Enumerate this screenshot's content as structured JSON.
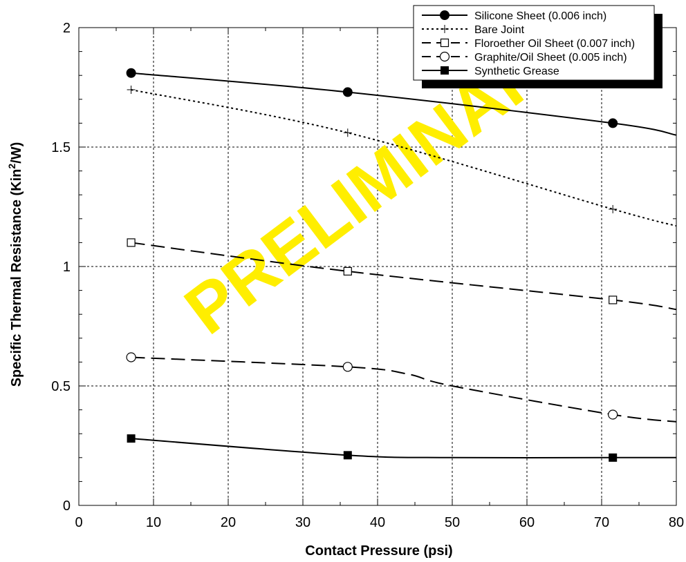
{
  "chart_data": {
    "type": "line",
    "xlabel": "Contact Pressure (psi)",
    "ylabel_main": "Specific Thermal Resistance (Kin",
    "ylabel_sup": "2",
    "ylabel_end": "/W)",
    "xlim": [
      0,
      80
    ],
    "ylim": [
      0,
      2
    ],
    "x_ticks": [
      0,
      10,
      20,
      30,
      40,
      50,
      60,
      70,
      80
    ],
    "x_tick_labels": [
      "0",
      "10",
      "20",
      "30",
      "40",
      "50",
      "60",
      "70",
      "80"
    ],
    "y_ticks": [
      0,
      0.5,
      1,
      1.5,
      2
    ],
    "y_tick_labels": [
      "0",
      "0.5",
      "1",
      "1.5",
      "2"
    ],
    "grid": true,
    "legend_position": "top-right",
    "watermark_text": "PRELIMINARY",
    "watermark_color": "#ffee00",
    "series": [
      {
        "name": "Silicone Sheet (0.006 inch)",
        "marker": "filled-circle",
        "line_style": "solid",
        "x": [
          7,
          36,
          71.5
        ],
        "y": [
          1.81,
          1.73,
          1.6
        ],
        "curve_x": [
          7,
          36,
          71.5,
          80
        ],
        "curve_y": [
          1.81,
          1.73,
          1.6,
          1.55
        ]
      },
      {
        "name": "Bare Joint",
        "marker": "plus",
        "line_style": "dotted",
        "x": [
          7,
          36,
          71.5
        ],
        "y": [
          1.74,
          1.56,
          1.24
        ],
        "curve_x": [
          7,
          36,
          71.5,
          80
        ],
        "curve_y": [
          1.74,
          1.56,
          1.24,
          1.17
        ]
      },
      {
        "name": "Floroether Oil Sheet (0.007 inch)",
        "marker": "open-square",
        "line_style": "long-dash",
        "x": [
          7,
          36,
          71.5
        ],
        "y": [
          1.1,
          0.98,
          0.86
        ],
        "curve_x": [
          7,
          36,
          71.5,
          80
        ],
        "curve_y": [
          1.1,
          0.98,
          0.86,
          0.82
        ]
      },
      {
        "name": "Graphite/Oil Sheet (0.005  inch)",
        "marker": "open-circle",
        "line_style": "long-dash",
        "x": [
          7,
          36,
          71.5
        ],
        "y": [
          0.62,
          0.58,
          0.38
        ],
        "curve_x": [
          7,
          36,
          44,
          50,
          71.5,
          80
        ],
        "curve_y": [
          0.62,
          0.58,
          0.55,
          0.5,
          0.38,
          0.35
        ]
      },
      {
        "name": "Synthetic Grease",
        "marker": "filled-square",
        "line_style": "solid",
        "x": [
          7,
          36,
          71.5
        ],
        "y": [
          0.28,
          0.21,
          0.2
        ],
        "curve_x": [
          7,
          36,
          50,
          71.5,
          80
        ],
        "curve_y": [
          0.28,
          0.21,
          0.2,
          0.2,
          0.2
        ]
      }
    ]
  }
}
